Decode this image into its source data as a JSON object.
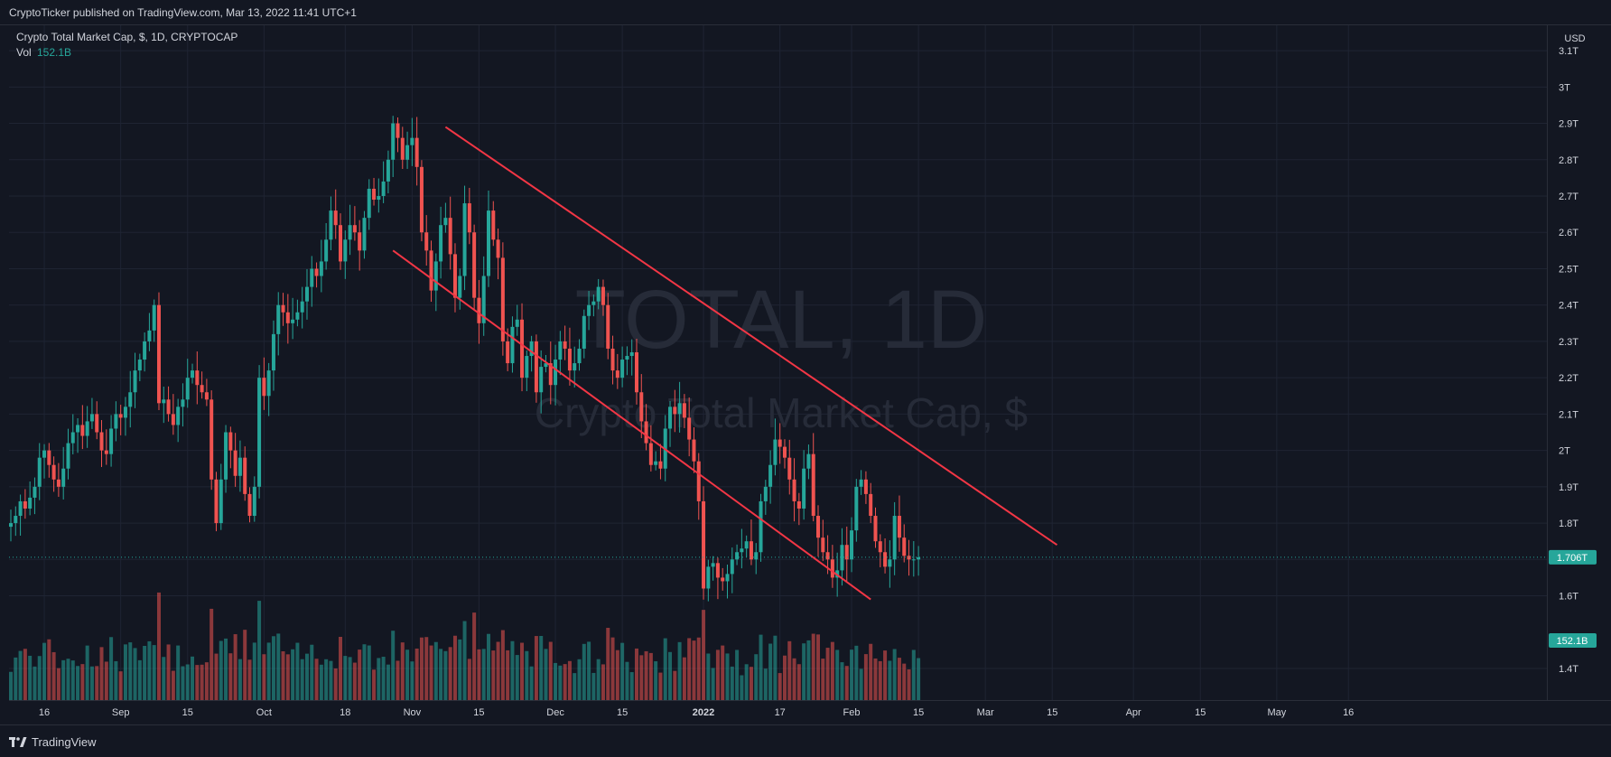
{
  "header": {
    "published": "CryptoTicker published on TradingView.com, Mar 13, 2022 11:41 UTC+1"
  },
  "footer": {
    "brand": "TradingView"
  },
  "colors": {
    "bg": "#131722",
    "grid": "#1f2433",
    "up": "#26a69a",
    "down": "#ef5350",
    "trendline": "#f23645",
    "text": "#d1d4dc",
    "watermark": "#262b38"
  },
  "chart_data": {
    "type": "candlestick",
    "symbol_line": "Crypto Total Market Cap, $, 1D, CRYPTOCAP",
    "vol_label": "Vol",
    "vol_value": "152.1B",
    "watermark_title": "TOTAL, 1D",
    "watermark_subtitle": "Crypto Total Market Cap, $",
    "currency": "USD",
    "ylim": [
      1.34,
      3.15
    ],
    "y_ticks": [
      "1.4T",
      "1.6T",
      "1.7T",
      "1.8T",
      "1.9T",
      "2T",
      "2.1T",
      "2.2T",
      "2.3T",
      "2.4T",
      "2.5T",
      "2.6T",
      "2.7T",
      "2.8T",
      "2.9T",
      "3T",
      "3.1T"
    ],
    "x_ticks": [
      "16",
      "Sep",
      "15",
      "Oct",
      "18",
      "Nov",
      "15",
      "Dec",
      "15",
      "2022",
      "17",
      "Feb",
      "15",
      "Mar",
      "15",
      "Apr",
      "15",
      "May",
      "16"
    ],
    "last_price_label": "1.706T",
    "last_price": 1.706,
    "last_volume_label": "152.1B",
    "start_date": "2021-08-09",
    "end_date": "2022-03-13",
    "close": [
      1.8,
      1.82,
      1.86,
      1.84,
      1.87,
      1.9,
      1.98,
      2.0,
      1.96,
      1.92,
      1.9,
      1.95,
      2.02,
      2.05,
      2.07,
      2.04,
      2.08,
      2.1,
      2.05,
      2.0,
      1.99,
      2.06,
      2.1,
      2.09,
      2.12,
      2.16,
      2.22,
      2.25,
      2.3,
      2.33,
      2.4,
      2.13,
      2.14,
      2.1,
      2.07,
      2.12,
      2.14,
      2.2,
      2.22,
      2.18,
      2.16,
      2.14,
      1.92,
      1.8,
      1.92,
      2.05,
      2.0,
      1.93,
      1.98,
      1.88,
      1.82,
      1.9,
      2.2,
      2.15,
      2.22,
      2.32,
      2.4,
      2.38,
      2.35,
      2.36,
      2.38,
      2.41,
      2.45,
      2.5,
      2.48,
      2.52,
      2.58,
      2.66,
      2.62,
      2.52,
      2.58,
      2.62,
      2.6,
      2.55,
      2.64,
      2.72,
      2.69,
      2.7,
      2.74,
      2.8,
      2.9,
      2.86,
      2.8,
      2.84,
      2.86,
      2.78,
      2.6,
      2.55,
      2.44,
      2.52,
      2.62,
      2.64,
      2.54,
      2.42,
      2.48,
      2.68,
      2.6,
      2.42,
      2.35,
      2.48,
      2.66,
      2.58,
      2.53,
      2.3,
      2.24,
      2.34,
      2.36,
      2.2,
      2.26,
      2.3,
      2.16,
      2.23,
      2.24,
      2.18,
      2.25,
      2.3,
      2.28,
      2.22,
      2.24,
      2.28,
      2.37,
      2.4,
      2.41,
      2.45,
      2.4,
      2.28,
      2.22,
      2.2,
      2.25,
      2.26,
      2.27,
      2.16,
      2.08,
      2.02,
      1.96,
      1.97,
      1.95,
      2.06,
      2.12,
      2.1,
      2.13,
      2.09,
      2.03,
      1.97,
      1.86,
      1.62,
      1.68,
      1.69,
      1.65,
      1.64,
      1.66,
      1.7,
      1.72,
      1.73,
      1.75,
      1.7,
      1.72,
      1.86,
      1.9,
      1.96,
      2.03,
      2.01,
      1.98,
      1.92,
      1.86,
      1.84,
      1.95,
      1.99,
      1.82,
      1.76,
      1.72,
      1.7,
      1.65,
      1.67,
      1.74,
      1.7,
      1.78,
      1.9,
      1.92,
      1.88,
      1.82,
      1.75,
      1.72,
      1.68,
      1.7,
      1.82,
      1.76,
      1.71,
      1.7,
      1.7,
      1.706
    ]
  }
}
